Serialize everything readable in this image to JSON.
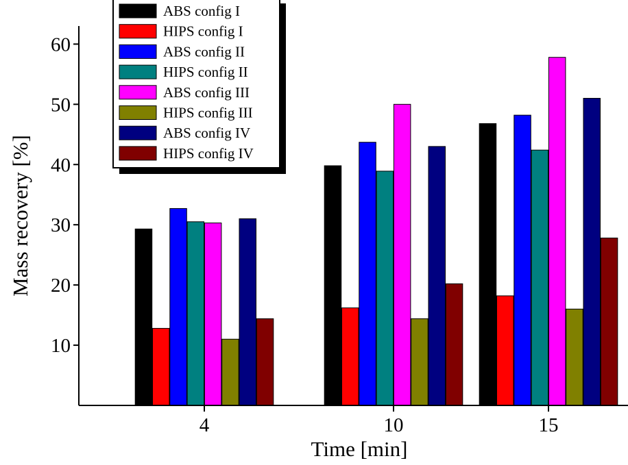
{
  "chart_data": {
    "type": "bar",
    "xlabel": "Time [min]",
    "ylabel": "Mass recovery [%]",
    "categories": [
      "4",
      "10",
      "15"
    ],
    "ylim": [
      0,
      63
    ],
    "yticks": [
      "10",
      "20",
      "30",
      "40",
      "50",
      "60"
    ],
    "grid": false,
    "legend_position": "top-left",
    "series": [
      {
        "name": "ABS config I",
        "color": "#000000",
        "values": [
          29.3,
          39.8,
          46.8
        ]
      },
      {
        "name": "HIPS config I",
        "color": "#ff0000",
        "values": [
          12.8,
          16.2,
          18.2
        ]
      },
      {
        "name": "ABS config II",
        "color": "#0000ff",
        "values": [
          32.7,
          43.7,
          48.2
        ]
      },
      {
        "name": "HIPS config II",
        "color": "#008080",
        "values": [
          30.5,
          38.9,
          42.4
        ]
      },
      {
        "name": "ABS config III",
        "color": "#ff00ff",
        "values": [
          30.3,
          50.0,
          57.8
        ]
      },
      {
        "name": "HIPS config III",
        "color": "#808000",
        "values": [
          11.0,
          14.4,
          16.0
        ]
      },
      {
        "name": "ABS config IV",
        "color": "#000080",
        "values": [
          31.0,
          43.0,
          51.0
        ]
      },
      {
        "name": "HIPS config IV",
        "color": "#800000",
        "values": [
          14.4,
          20.2,
          27.8
        ]
      }
    ]
  }
}
